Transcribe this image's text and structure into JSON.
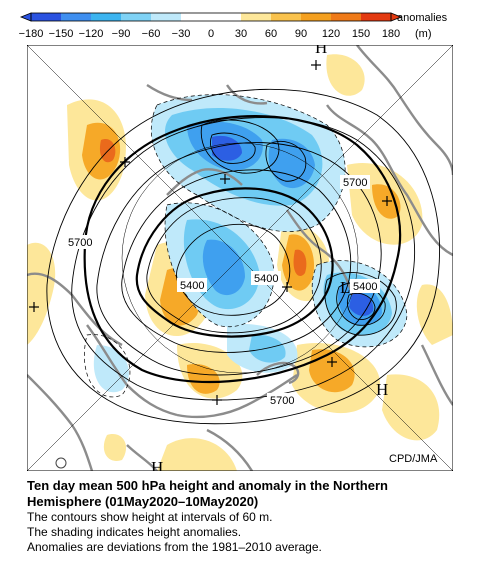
{
  "legend": {
    "ticks": [
      "−180",
      "−150",
      "−120",
      "−90",
      "−60",
      "−30",
      "0",
      "30",
      "60",
      "90",
      "120",
      "150",
      "180"
    ],
    "label_line1": "anomalies",
    "label_line2": "(m)",
    "colors": [
      "#2a52e0",
      "#3f8ff0",
      "#3cb4f0",
      "#7fd2f5",
      "#bfe9fa",
      "#ffffff",
      "#ffffff",
      "#fde79a",
      "#f9c24d",
      "#f4a020",
      "#ef7a18",
      "#e33a10"
    ]
  },
  "map": {
    "credit": "CPD/JMA",
    "contour_labels": [
      "5700",
      "5700",
      "5700",
      "5400",
      "5400",
      "5400"
    ],
    "centers": [
      "H",
      "H",
      "H",
      "L"
    ]
  },
  "caption": {
    "title_line1": "Ten day mean 500 hPa height and anomaly in the Northern",
    "title_line2": "Hemisphere (01May2020–10May2020)",
    "note1": "The contours show height at intervals of 60 m.",
    "note2": "The shading indicates height anomalies.",
    "note3": "Anomalies are deviations from the 1981–2010 average."
  }
}
